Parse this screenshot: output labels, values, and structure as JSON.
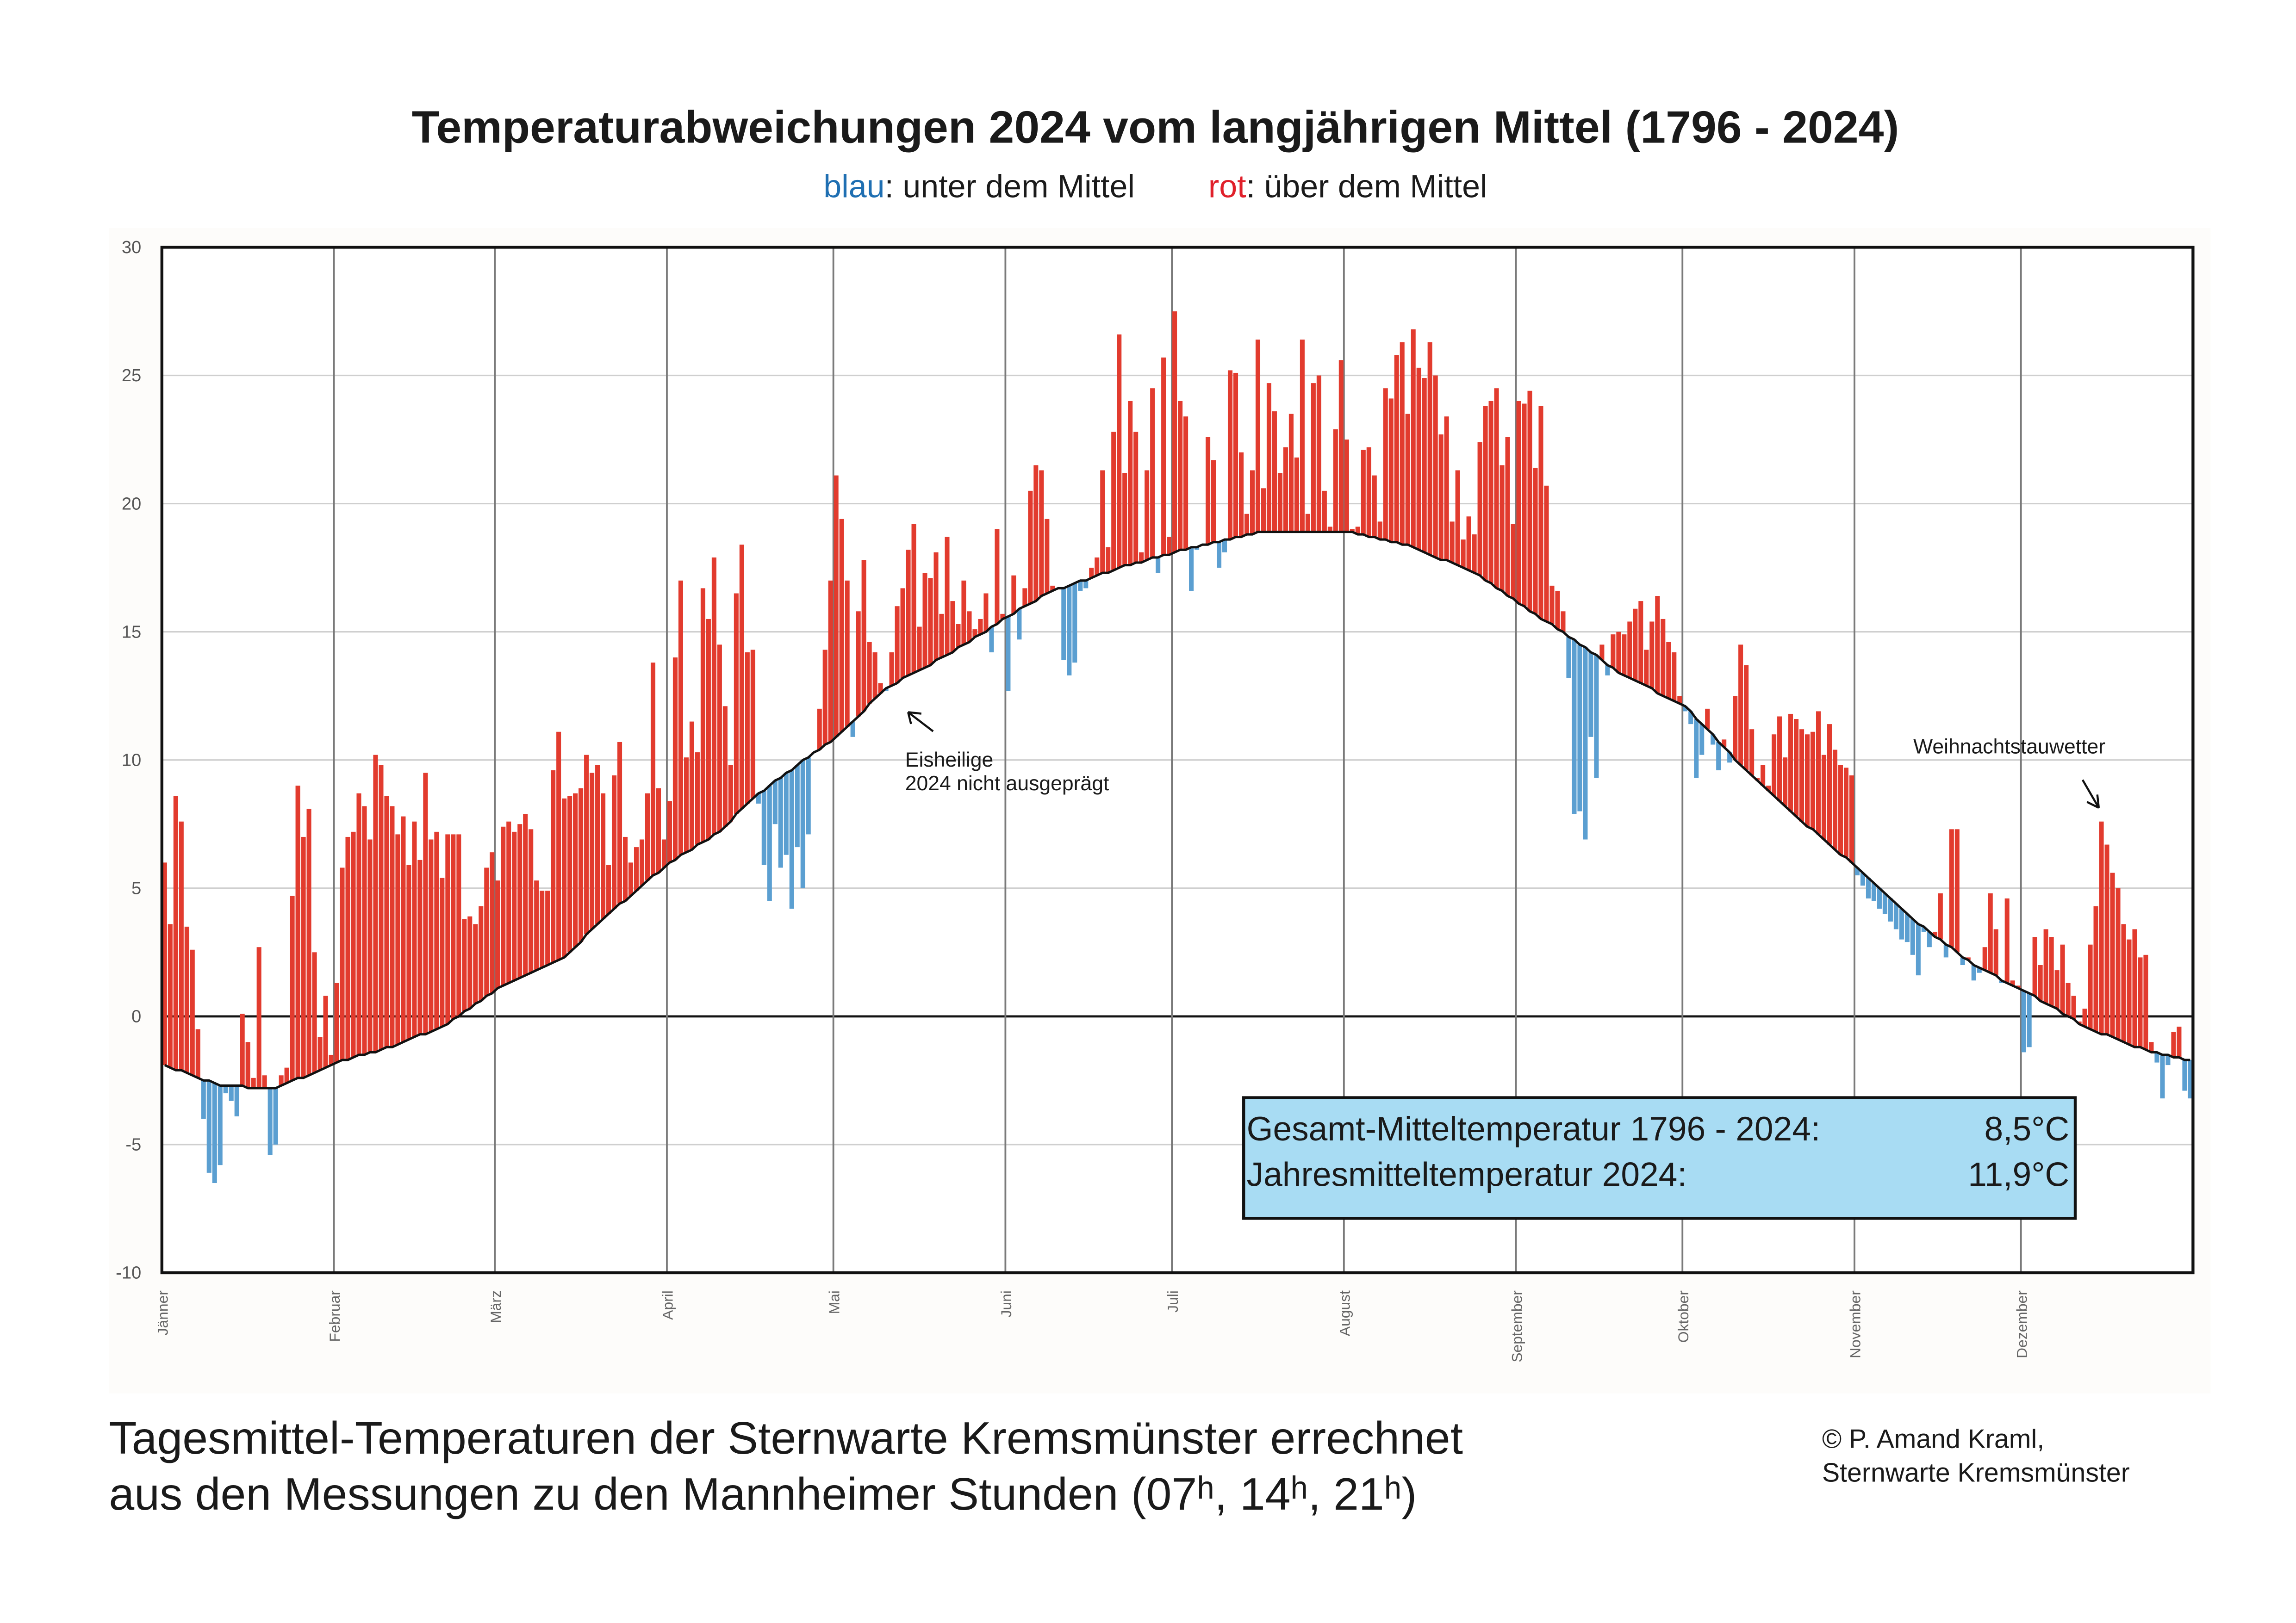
{
  "chart_data": {
    "type": "bar",
    "title": "Temperaturabweichungen 2024 vom langjährigen Mittel (1796 - 2024)",
    "legend": [
      {
        "word": "blau",
        "text": ": unter dem Mittel",
        "color": "#1f6fb2"
      },
      {
        "word": "rot",
        "text": ": über dem Mittel",
        "color": "#e0202a"
      }
    ],
    "color_above": "#e23b2e",
    "color_below": "#5b9fd1",
    "mean_line_color": "#111111",
    "grid": true,
    "zero_line": true,
    "ylim": [
      -10,
      30
    ],
    "yticks": [
      -10,
      -5,
      0,
      5,
      10,
      15,
      20,
      25,
      30
    ],
    "categories": [
      "Jänner",
      null,
      null,
      null,
      null,
      null,
      null,
      null,
      null,
      null,
      null,
      null,
      null,
      null,
      null,
      null,
      null,
      null,
      null,
      null,
      null,
      null,
      null,
      null,
      null,
      null,
      null,
      null,
      null,
      null,
      null,
      "Februar",
      null,
      null,
      null,
      null,
      null,
      null,
      null,
      null,
      null,
      null,
      null,
      null,
      null,
      null,
      null,
      null,
      null,
      null,
      null,
      null,
      null,
      null,
      null,
      null,
      null,
      null,
      null,
      null,
      "März",
      null,
      null,
      null,
      null,
      null,
      null,
      null,
      null,
      null,
      null,
      null,
      null,
      null,
      null,
      null,
      null,
      null,
      null,
      null,
      null,
      null,
      null,
      null,
      null,
      null,
      null,
      null,
      null,
      null,
      null,
      "April",
      null,
      null,
      null,
      null,
      null,
      null,
      null,
      null,
      null,
      null,
      null,
      null,
      null,
      null,
      null,
      null,
      null,
      null,
      null,
      null,
      null,
      null,
      null,
      null,
      null,
      null,
      null,
      null,
      null,
      "Mai",
      null,
      null,
      null,
      null,
      null,
      null,
      null,
      null,
      null,
      null,
      null,
      null,
      null,
      null,
      null,
      null,
      null,
      null,
      null,
      null,
      null,
      null,
      null,
      null,
      null,
      null,
      null,
      null,
      null,
      null,
      "Juni",
      null,
      null,
      null,
      null,
      null,
      null,
      null,
      null,
      null,
      null,
      null,
      null,
      null,
      null,
      null,
      null,
      null,
      null,
      null,
      null,
      null,
      null,
      null,
      null,
      null,
      null,
      null,
      null,
      null,
      "Juli",
      null,
      null,
      null,
      null,
      null,
      null,
      null,
      null,
      null,
      null,
      null,
      null,
      null,
      null,
      null,
      null,
      null,
      null,
      null,
      null,
      null,
      null,
      null,
      null,
      null,
      null,
      null,
      null,
      null,
      null,
      "August",
      null,
      null,
      null,
      null,
      null,
      null,
      null,
      null,
      null,
      null,
      null,
      null,
      null,
      null,
      null,
      null,
      null,
      null,
      null,
      null,
      null,
      null,
      null,
      null,
      null,
      null,
      null,
      null,
      null,
      null,
      "September",
      null,
      null,
      null,
      null,
      null,
      null,
      null,
      null,
      null,
      null,
      null,
      null,
      null,
      null,
      null,
      null,
      null,
      null,
      null,
      null,
      null,
      null,
      null,
      null,
      null,
      null,
      null,
      null,
      null,
      "Oktober",
      null,
      null,
      null,
      null,
      null,
      null,
      null,
      null,
      null,
      null,
      null,
      null,
      null,
      null,
      null,
      null,
      null,
      null,
      null,
      null,
      null,
      null,
      null,
      null,
      null,
      null,
      null,
      null,
      null,
      null,
      "November",
      null,
      null,
      null,
      null,
      null,
      null,
      null,
      null,
      null,
      null,
      null,
      null,
      null,
      null,
      null,
      null,
      null,
      null,
      null,
      null,
      null,
      null,
      null,
      null,
      null,
      null,
      null,
      null,
      null,
      "Dezember",
      null,
      null,
      null,
      null,
      null,
      null,
      null,
      null,
      null,
      null,
      null,
      null,
      null,
      null,
      null,
      null,
      null,
      null,
      null,
      null,
      null,
      null,
      null,
      null,
      null,
      null,
      null,
      null,
      null,
      null
    ],
    "values": [
      6,
      3.6,
      8.6,
      7.6,
      3.5,
      2.6,
      -0.5,
      -4,
      -6.1,
      -6.5,
      -5.8,
      -3.0,
      -3.3,
      -3.9,
      0.1,
      -1.0,
      -2.4,
      2.7,
      -2.3,
      -5.4,
      -5.0,
      -2.3,
      -2.0,
      4.7,
      9.0,
      7.0,
      8.1,
      2.5,
      -0.8,
      0.8,
      -1.5,
      1.3,
      5.8,
      7,
      7.2,
      8.7,
      8.2,
      6.9,
      10.2,
      9.8,
      8.6,
      8.2,
      7.1,
      7.8,
      5.9,
      7.6,
      6.1,
      9.5,
      6.9,
      7.2,
      5.4,
      7.1,
      7.1,
      7.1,
      3.8,
      3.9,
      3.6,
      4.3,
      5.8,
      6.4,
      5.3,
      7.4,
      7.6,
      7.2,
      7.5,
      7.9,
      7.3,
      5.3,
      4.9,
      4.9,
      9.6,
      11.1,
      8.5,
      8.6,
      8.7,
      8.9,
      10.2,
      9.5,
      9.8,
      8.7,
      5.9,
      9.4,
      10.7,
      7.0,
      6.0,
      6.6,
      6.9,
      8.7,
      13.8,
      8.9,
      6.9,
      8.4,
      14,
      17,
      10.1,
      11.5,
      10.3,
      16.7,
      15.5,
      17.9,
      14.5,
      12.1,
      9.8,
      16.5,
      18.4,
      14.2,
      14.3,
      8.3,
      5.9,
      4.5,
      7.5,
      5.8,
      6.3,
      4.2,
      6.6,
      5,
      7.1,
      10.3,
      12.0,
      14.3,
      17.0,
      21.1,
      19.4,
      17.0,
      10.9,
      15.8,
      17.8,
      14.6,
      14.2,
      13.0,
      12.7,
      14.2,
      16.0,
      16.7,
      18.2,
      19.2,
      15.2,
      17.3,
      17.1,
      18.1,
      15.7,
      18.7,
      16.2,
      15.3,
      17.0,
      15.8,
      15.1,
      15.5,
      16.5,
      14.2,
      19.0,
      15.7,
      12.7,
      17.2,
      14.7,
      16.7,
      20.5,
      21.5,
      21.3,
      19.4,
      16.8,
      16.7,
      13.9,
      13.3,
      13.8,
      16.6,
      16.7,
      17.5,
      17.9,
      21.3,
      18.3,
      22.8,
      26.6,
      21.2,
      24.0,
      22.8,
      18.1,
      21.3,
      24.5,
      17.3,
      25.7,
      18.7,
      27.5,
      24,
      23.4,
      16.6,
      18.2,
      18.4,
      22.6,
      21.7,
      17.5,
      18.1,
      25.2,
      25.1,
      22,
      19.6,
      21.3,
      26.4,
      20.6,
      24.7,
      23.6,
      21.2,
      22.2,
      23.5,
      21.8,
      26.4,
      19.6,
      24.7,
      25.0,
      20.5,
      19.1,
      22.9,
      25.6,
      22.5,
      19.0,
      19.1,
      22.1,
      22.2,
      21.1,
      19.3,
      24.5,
      24.1,
      25.8,
      26.3,
      23.5,
      26.8,
      25.3,
      24.9,
      26.3,
      25.0,
      22.7,
      23.4,
      19.3,
      21.3,
      18.6,
      19.5,
      18.8,
      22.4,
      23.8,
      24.0,
      24.5,
      21.5,
      22.6,
      19.2,
      24.0,
      23.9,
      24.4,
      21.4,
      23.8,
      20.7,
      16.8,
      16.6,
      15.8,
      13.2,
      7.9,
      8.0,
      6.9,
      10.9,
      9.3,
      14.5,
      13.3,
      14.9,
      15.0,
      14.9,
      15.4,
      15.9,
      16.2,
      14.3,
      15.4,
      16.4,
      15.5,
      14.6,
      14.2,
      12.5,
      11.9,
      11.4,
      9.3,
      10.2,
      12.0,
      10.6,
      9.6,
      10.8,
      9.9,
      12.5,
      14.5,
      13.7,
      11.2,
      9.3,
      9.8,
      9.0,
      11.0,
      11.7,
      10.1,
      11.8,
      11.6,
      11.2,
      11.0,
      11.1,
      11.9,
      10.2,
      11.4,
      10.4,
      9.8,
      9.7,
      9.4,
      5.5,
      5.1,
      4.6,
      4.5,
      4.2,
      4.0,
      3.7,
      3.4,
      3.0,
      2.9,
      2.4,
      1.6,
      3.3,
      2.7,
      3.3,
      4.8,
      2.3,
      7.3,
      7.3,
      2.0,
      2.3,
      1.4,
      1.7,
      2.7,
      4.8,
      3.4,
      1.3,
      4.6,
      1.4,
      1.2,
      -1.4,
      -1.2,
      3.1,
      2.0,
      3.4,
      3.1,
      1.8,
      2.8,
      1.3,
      0.8,
      -0.2,
      0.3,
      2.8,
      4.3,
      7.6,
      6.7,
      5.6,
      5.0,
      3.6,
      3.0,
      3.4,
      2.3,
      2.4,
      -1.0,
      -1.8,
      -3.2,
      -1.9,
      -0.6,
      -0.4,
      -2.9,
      -3.2
    ],
    "mean_values": [
      -1.9,
      -2.0,
      -2.1,
      -2.1,
      -2.2,
      -2.3,
      -2.4,
      -2.5,
      -2.5,
      -2.6,
      -2.7,
      -2.7,
      -2.7,
      -2.7,
      -2.7,
      -2.8,
      -2.8,
      -2.8,
      -2.8,
      -2.8,
      -2.8,
      -2.7,
      -2.6,
      -2.5,
      -2.4,
      -2.4,
      -2.3,
      -2.2,
      -2.1,
      -2.0,
      -1.9,
      -1.8,
      -1.7,
      -1.7,
      -1.6,
      -1.5,
      -1.5,
      -1.4,
      -1.4,
      -1.3,
      -1.2,
      -1.2,
      -1.1,
      -1.0,
      -0.9,
      -0.8,
      -0.7,
      -0.7,
      -0.6,
      -0.5,
      -0.4,
      -0.3,
      -0.1,
      0.0,
      0.2,
      0.3,
      0.5,
      0.6,
      0.8,
      0.9,
      1.1,
      1.2,
      1.3,
      1.4,
      1.5,
      1.6,
      1.7,
      1.8,
      1.9,
      2.0,
      2.1,
      2.2,
      2.3,
      2.5,
      2.7,
      2.9,
      3.2,
      3.4,
      3.6,
      3.8,
      4.0,
      4.2,
      4.4,
      4.5,
      4.7,
      4.9,
      5.1,
      5.3,
      5.5,
      5.6,
      5.8,
      6.0,
      6.1,
      6.3,
      6.4,
      6.5,
      6.7,
      6.8,
      6.9,
      7.1,
      7.2,
      7.4,
      7.6,
      7.9,
      8.1,
      8.3,
      8.5,
      8.7,
      8.8,
      9.0,
      9.2,
      9.3,
      9.5,
      9.6,
      9.8,
      10.0,
      10.1,
      10.3,
      10.4,
      10.6,
      10.7,
      10.9,
      11.1,
      11.3,
      11.5,
      11.7,
      11.9,
      12.2,
      12.4,
      12.6,
      12.8,
      12.9,
      13.0,
      13.2,
      13.3,
      13.4,
      13.5,
      13.6,
      13.7,
      13.9,
      14.0,
      14.1,
      14.2,
      14.4,
      14.5,
      14.6,
      14.8,
      14.9,
      15.0,
      15.2,
      15.3,
      15.5,
      15.6,
      15.7,
      15.9,
      16.0,
      16.1,
      16.2,
      16.4,
      16.5,
      16.6,
      16.7,
      16.7,
      16.8,
      16.9,
      17.0,
      17.0,
      17.1,
      17.2,
      17.3,
      17.3,
      17.4,
      17.5,
      17.6,
      17.6,
      17.7,
      17.7,
      17.8,
      17.9,
      17.9,
      18.0,
      18.0,
      18.1,
      18.2,
      18.2,
      18.3,
      18.3,
      18.4,
      18.4,
      18.5,
      18.5,
      18.6,
      18.6,
      18.7,
      18.7,
      18.8,
      18.8,
      18.9,
      18.9,
      18.9,
      18.9,
      18.9,
      18.9,
      18.9,
      18.9,
      18.9,
      18.9,
      18.9,
      18.9,
      18.9,
      18.9,
      18.9,
      18.9,
      18.9,
      18.9,
      18.8,
      18.8,
      18.7,
      18.7,
      18.6,
      18.6,
      18.5,
      18.5,
      18.4,
      18.4,
      18.3,
      18.2,
      18.1,
      18.0,
      17.9,
      17.8,
      17.8,
      17.7,
      17.6,
      17.5,
      17.4,
      17.3,
      17.2,
      17.0,
      16.9,
      16.7,
      16.6,
      16.4,
      16.3,
      16.1,
      16.0,
      15.8,
      15.7,
      15.5,
      15.4,
      15.3,
      15.1,
      15.0,
      14.8,
      14.7,
      14.5,
      14.4,
      14.2,
      14.1,
      13.9,
      13.7,
      13.6,
      13.4,
      13.3,
      13.2,
      13.1,
      13.0,
      12.9,
      12.8,
      12.6,
      12.5,
      12.4,
      12.3,
      12.2,
      12.1,
      11.9,
      11.6,
      11.4,
      11.2,
      11.0,
      10.7,
      10.5,
      10.3,
      10.0,
      9.8,
      9.6,
      9.4,
      9.2,
      9.0,
      8.8,
      8.6,
      8.4,
      8.2,
      8.0,
      7.8,
      7.6,
      7.4,
      7.3,
      7.1,
      6.9,
      6.7,
      6.5,
      6.3,
      6.2,
      6.0,
      5.8,
      5.6,
      5.4,
      5.2,
      5.0,
      4.8,
      4.6,
      4.4,
      4.2,
      4.0,
      3.8,
      3.6,
      3.5,
      3.3,
      3.1,
      3.0,
      2.8,
      2.7,
      2.5,
      2.3,
      2.2,
      2.0,
      1.9,
      1.8,
      1.7,
      1.6,
      1.4,
      1.3,
      1.2,
      1.1,
      1.0,
      0.9,
      0.8,
      0.6,
      0.5,
      0.4,
      0.3,
      0.1,
      0.0,
      -0.1,
      -0.3,
      -0.4,
      -0.5,
      -0.6,
      -0.7,
      -0.7,
      -0.8,
      -0.9,
      -1.0,
      -1.1,
      -1.2,
      -1.2,
      -1.3,
      -1.4,
      -1.4,
      -1.5,
      -1.5,
      -1.6,
      -1.6,
      -1.7,
      -1.7
    ],
    "annotations": [
      {
        "lines": [
          "Eisheilige",
          "2024 nicht ausgeprägt"
        ]
      },
      {
        "lines": [
          "Weihnachtstauwetter"
        ]
      }
    ],
    "info_box": {
      "rows": [
        [
          "Gesamt-Mitteltemperatur 1796 - 2024:",
          "8,5°C"
        ],
        [
          "Jahresmitteltemperatur 2024:",
          "11,9°C"
        ]
      ]
    }
  },
  "footer": {
    "lines": [
      "Tagesmittel-Temperaturen der Sternwarte Kremsmünster errechnet",
      "aus den Messungen zu den Mannheimer Stunden (07ʰ, 14ʰ, 21ʰ)"
    ]
  },
  "credit": {
    "lines": [
      "© P. Amand Kraml,",
      "Sternwarte Kremsmünster"
    ]
  }
}
